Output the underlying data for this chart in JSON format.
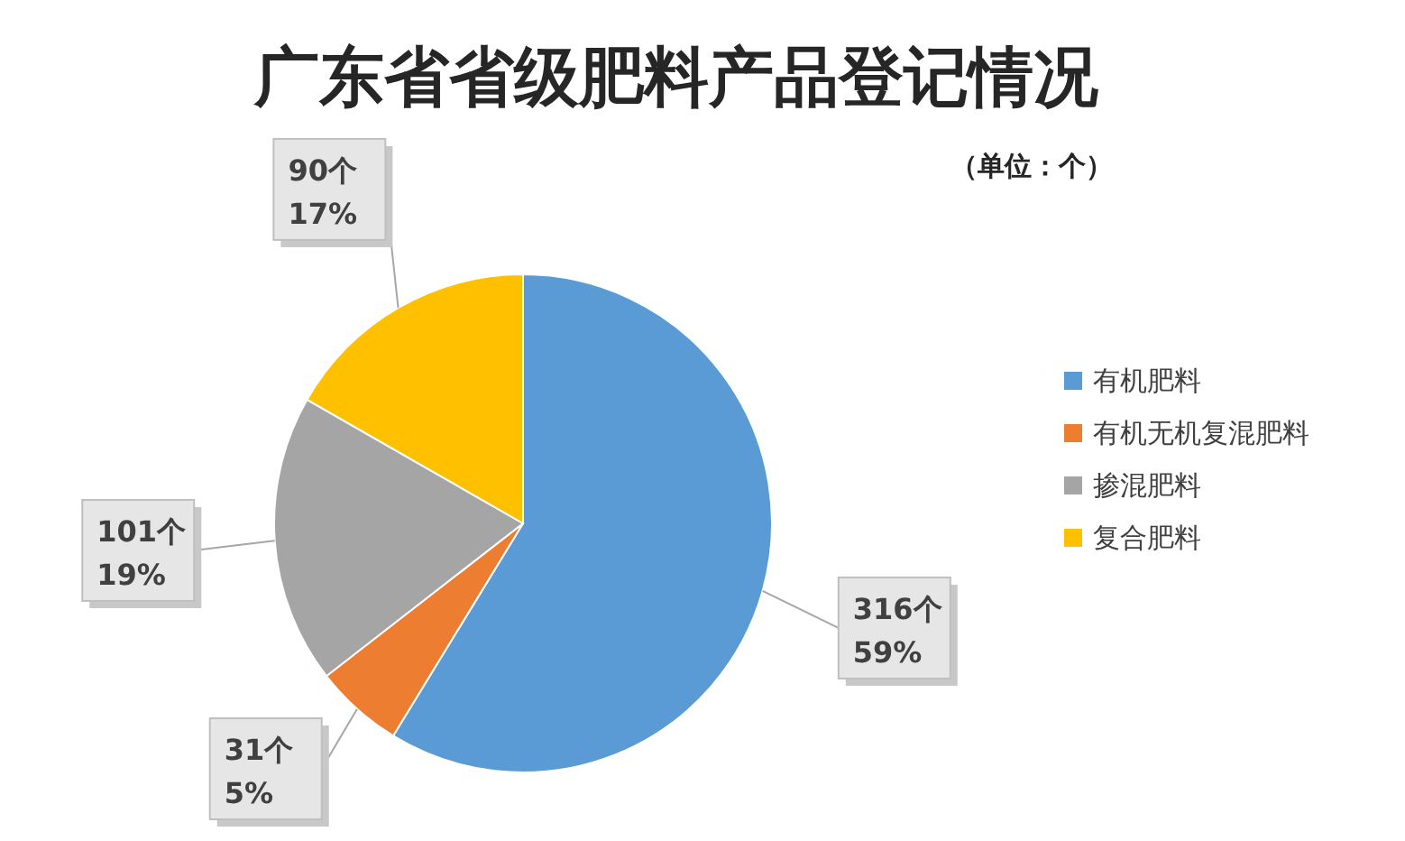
{
  "chart_data": {
    "type": "pie",
    "title": "广东省省级肥料产品登记情况",
    "subtitle": "（单位：个）",
    "categories": [
      "有机肥料",
      "有机无机复混肥料",
      "掺混肥料",
      "复合肥料"
    ],
    "values": [
      316,
      31,
      101,
      90
    ],
    "colors": [
      "#5b9bd5",
      "#ed7d31",
      "#a5a5a5",
      "#ffc000"
    ],
    "value_labels": [
      "316个\n59%",
      "31个\n5%",
      "101个\n19%",
      "90个\n17%"
    ],
    "legend": "right"
  }
}
